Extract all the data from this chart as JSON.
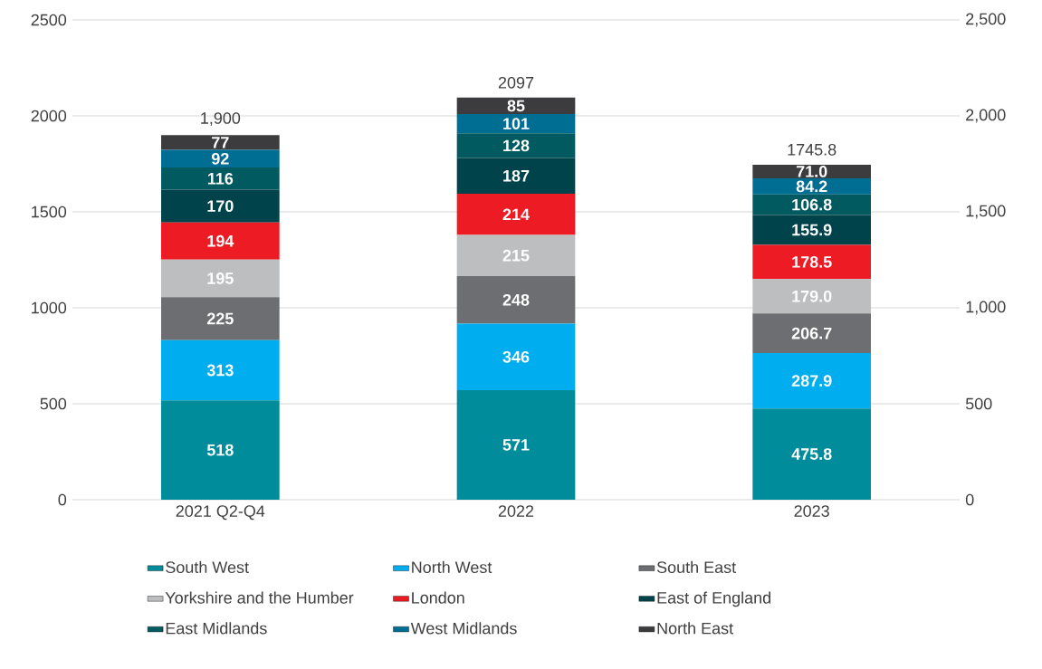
{
  "chart_data": {
    "type": "bar",
    "stacked": true,
    "categories": [
      "2021 Q2-Q4",
      "2022",
      "2023"
    ],
    "series": [
      {
        "name": "South West",
        "color": "#008c9a",
        "values": [
          518,
          571,
          475.8
        ],
        "value_labels": [
          "518",
          "571",
          "475.8"
        ]
      },
      {
        "name": "North West",
        "color": "#00aeef",
        "values": [
          313,
          346,
          287.9
        ],
        "value_labels": [
          "313",
          "346",
          "287.9"
        ]
      },
      {
        "name": "South East",
        "color": "#6d6e71",
        "values": [
          225,
          248,
          206.7
        ],
        "value_labels": [
          "225",
          "248",
          "206.7"
        ]
      },
      {
        "name": "Yorkshire and the Humber",
        "color": "#bcbec0",
        "values": [
          195,
          215,
          179.0
        ],
        "value_labels": [
          "195",
          "215",
          "179.0"
        ]
      },
      {
        "name": "London",
        "color": "#ed1c24",
        "values": [
          194,
          214,
          178.5
        ],
        "value_labels": [
          "194",
          "214",
          "178.5"
        ]
      },
      {
        "name": "East of England",
        "color": "#00434a",
        "values": [
          170,
          187,
          155.9
        ],
        "value_labels": [
          "170",
          "187",
          "155.9"
        ]
      },
      {
        "name": "East Midlands",
        "color": "#005a5f",
        "values": [
          116,
          128,
          106.8
        ],
        "value_labels": [
          "116",
          "128",
          "106.8"
        ]
      },
      {
        "name": "West Midlands",
        "color": "#006d93",
        "values": [
          92,
          101,
          84.2
        ],
        "value_labels": [
          "92",
          "101",
          "84.2"
        ]
      },
      {
        "name": "North East",
        "color": "#3c3c3e",
        "values": [
          77,
          85,
          71.0
        ],
        "value_labels": [
          "77",
          "85",
          "71.0"
        ]
      }
    ],
    "totals": [
      "1,900",
      "2097",
      "1745.8"
    ],
    "ylim": [
      0,
      2500
    ],
    "yticks": [
      0,
      500,
      1000,
      1500,
      2000,
      2500
    ],
    "y2lim": [
      0,
      2500
    ],
    "y2ticks": [
      {
        "value": 0,
        "label": "0"
      },
      {
        "value": 500,
        "label": "500"
      },
      {
        "value": 1000,
        "label": "1,000"
      },
      {
        "value": 1500,
        "label": "1,500"
      },
      {
        "value": 2000,
        "label": "2,000"
      },
      {
        "value": 2500,
        "label": "2,500"
      }
    ],
    "grid": "y",
    "legend": "bottom"
  }
}
